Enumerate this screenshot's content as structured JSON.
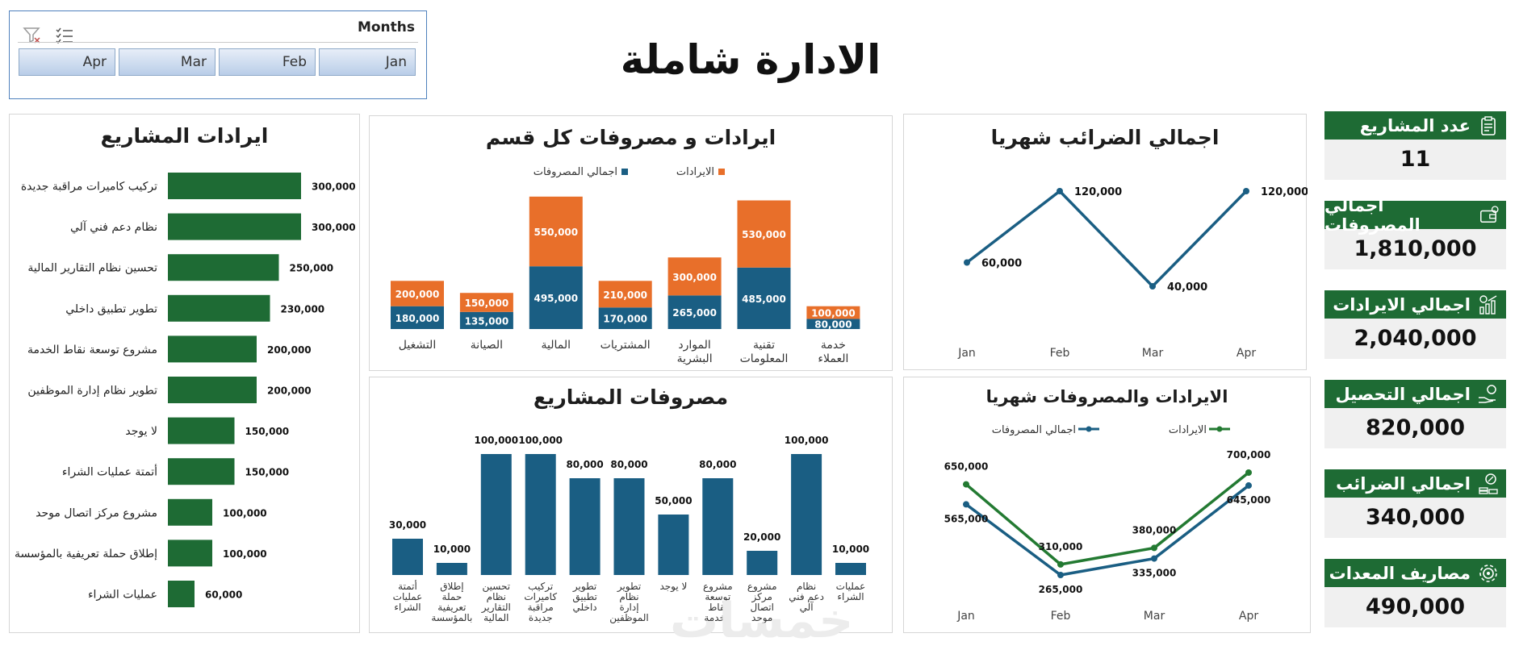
{
  "page_title": "الادارة شاملة",
  "watermark": "خمسات",
  "slicer": {
    "header": "Months",
    "buttons": [
      "Apr",
      "Mar",
      "Feb",
      "Jan"
    ],
    "icons": [
      "multi-select-icon",
      "clear-filter-icon"
    ]
  },
  "kpis": [
    {
      "label": "عدد المشاريع",
      "value": "11",
      "icon": "clipboard-icon"
    },
    {
      "label": "اجمالي المصروفات",
      "value": "1,810,000",
      "icon": "wallet-icon"
    },
    {
      "label": "اجمالي الايرادات",
      "value": "2,040,000",
      "icon": "revenue-growth-icon"
    },
    {
      "label": "اجمالي التحصيل",
      "value": "820,000",
      "icon": "hand-coin-icon"
    },
    {
      "label": "اجمالي الضرائب",
      "value": "340,000",
      "icon": "tax-coins-icon"
    },
    {
      "label": "مصاريف المعدات",
      "value": "490,000",
      "icon": "gear-settings-icon"
    }
  ],
  "colors": {
    "green": "#1e6b34",
    "orange": "#e86f2a",
    "navy": "#1a5e83",
    "lineGreen": "#237a32",
    "lineNavy": "#1a5e83"
  },
  "chart_data": [
    {
      "id": "project_revenue",
      "type": "bar",
      "orientation": "horizontal",
      "title": "ايرادات المشاريع",
      "categories": [
        "تركيب كاميرات مراقبة جديدة",
        "نظام دعم فني آلي",
        "تحسين نظام التقارير المالية",
        "تطوير تطبيق داخلي",
        "مشروع توسعة نقاط الخدمة",
        "تطوير نظام إدارة الموظفين",
        "لا يوجد",
        "أتمتة عمليات الشراء",
        "مشروع مركز اتصال موحد",
        "إطلاق حملة تعريفية بالمؤسسة",
        "عمليات الشراء"
      ],
      "values": [
        300000,
        300000,
        250000,
        230000,
        200000,
        200000,
        150000,
        150000,
        100000,
        100000,
        60000
      ],
      "labels": [
        "300,000",
        "300,000",
        "250,000",
        "230,000",
        "200,000",
        "200,000",
        "150,000",
        "150,000",
        "100,000",
        "100,000",
        "60,000"
      ]
    },
    {
      "id": "dept_rev_exp",
      "type": "bar",
      "stacked": true,
      "title": "ايرادات و مصروفات كل قسم",
      "categories": [
        "التشغيل",
        "الصيانة",
        "المالية",
        "المشتريات",
        "الموارد البشرية",
        "تقنية المعلومات",
        "خدمة العملاء"
      ],
      "series": [
        {
          "name": "اجمالي المصروفات",
          "values": [
            180000,
            135000,
            495000,
            170000,
            265000,
            485000,
            80000
          ],
          "labels": [
            "180,000",
            "135,000",
            "495,000",
            "170,000",
            "265,000",
            "485,000",
            "80,000"
          ]
        },
        {
          "name": "الايرادات",
          "values": [
            200000,
            150000,
            550000,
            210000,
            300000,
            530000,
            100000
          ],
          "labels": [
            "200,000",
            "150,000",
            "550,000",
            "210,000",
            "300,000",
            "530,000",
            "100,000"
          ]
        }
      ]
    },
    {
      "id": "monthly_tax",
      "type": "line",
      "title": "اجمالي الضرائب شهريا",
      "categories": [
        "Jan",
        "Feb",
        "Mar",
        "Apr"
      ],
      "values": [
        60000,
        120000,
        40000,
        120000
      ],
      "labels": [
        "60,000",
        "120,000",
        "40,000",
        "120,000"
      ]
    },
    {
      "id": "project_expenses",
      "type": "bar",
      "title": "مصروفات المشاريع",
      "categories": [
        "أتمتة عمليات الشراء",
        "إطلاق حملة تعريفية بالمؤسسة",
        "تحسين نظام التقارير المالية",
        "تركيب كاميرات مراقبة جديدة",
        "تطوير تطبيق داخلي",
        "تطوير نظام إدارة الموظفين",
        "لا يوجد",
        "مشروع توسعة نقاط الخدمة",
        "مشروع مركز اتصال موحد",
        "نظام دعم فني آلي",
        "عمليات الشراء"
      ],
      "values": [
        30000,
        10000,
        100000,
        100000,
        80000,
        80000,
        50000,
        80000,
        20000,
        100000,
        10000
      ],
      "labels": [
        "30,000",
        "10,000",
        "100,000",
        "100,000",
        "80,000",
        "80,000",
        "50,000",
        "80,000",
        "20,000",
        "100,000",
        "10,000"
      ]
    },
    {
      "id": "monthly_rev_exp",
      "type": "line",
      "title": "الايرادات والمصروفات شهريا",
      "categories": [
        "Jan",
        "Feb",
        "Mar",
        "Apr"
      ],
      "series": [
        {
          "name": "الايرادات",
          "values": [
            650000,
            310000,
            380000,
            700000
          ],
          "labels": [
            "650,000",
            "310,000",
            "380,000",
            "700,000"
          ]
        },
        {
          "name": "اجمالي المصروفات",
          "values": [
            565000,
            265000,
            335000,
            645000
          ],
          "labels": [
            "565,000",
            "265,000",
            "335,000",
            "645,000"
          ]
        }
      ]
    }
  ]
}
